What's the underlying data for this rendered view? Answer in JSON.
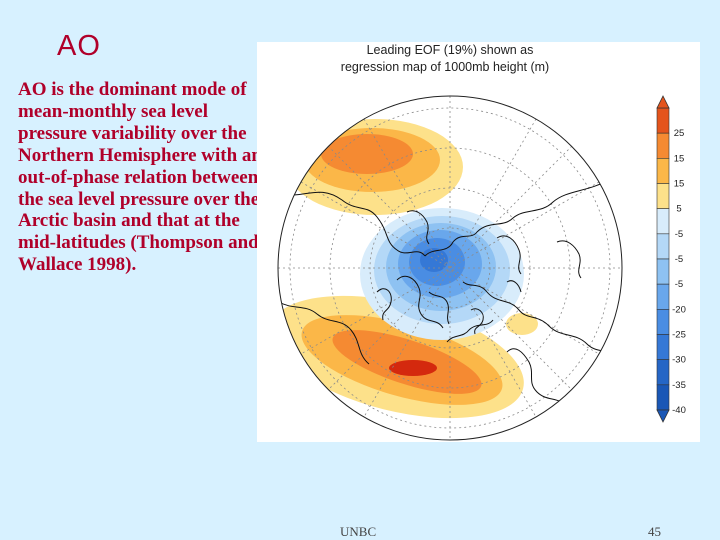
{
  "slide": {
    "title": "AO",
    "body": "AO is the dominant mode of mean-monthly sea level pressure variability over the Northern Hemisphere with an out-of-phase relation between the sea level pressure over the Arctic basin and that at the mid-latitudes (Thompson and Wallace 1998).",
    "footer_left": "UNBC",
    "page_number": "45"
  },
  "figure": {
    "title_line1": "Leading EOF (19%) shown as",
    "title_line2": "regression map of 1000mb height (m)",
    "colorbar": [
      {
        "label": "25",
        "color": "#e4541c"
      },
      {
        "label": "15",
        "color": "#f58a32"
      },
      {
        "label": "15",
        "color": "#fbb748"
      },
      {
        "label": "5",
        "color": "#fde18a"
      },
      {
        "label": "-5",
        "color": "#d8ecfb"
      },
      {
        "label": "-5",
        "color": "#b4d8f7"
      },
      {
        "label": "-5",
        "color": "#8ec2f2"
      },
      {
        "label": "-20",
        "color": "#69a7ec"
      },
      {
        "label": "-25",
        "color": "#4a8de3"
      },
      {
        "label": "-30",
        "color": "#3578d6"
      },
      {
        "label": "-35",
        "color": "#2566c6"
      },
      {
        "label": "-40",
        "color": "#1a57b6"
      }
    ]
  }
}
